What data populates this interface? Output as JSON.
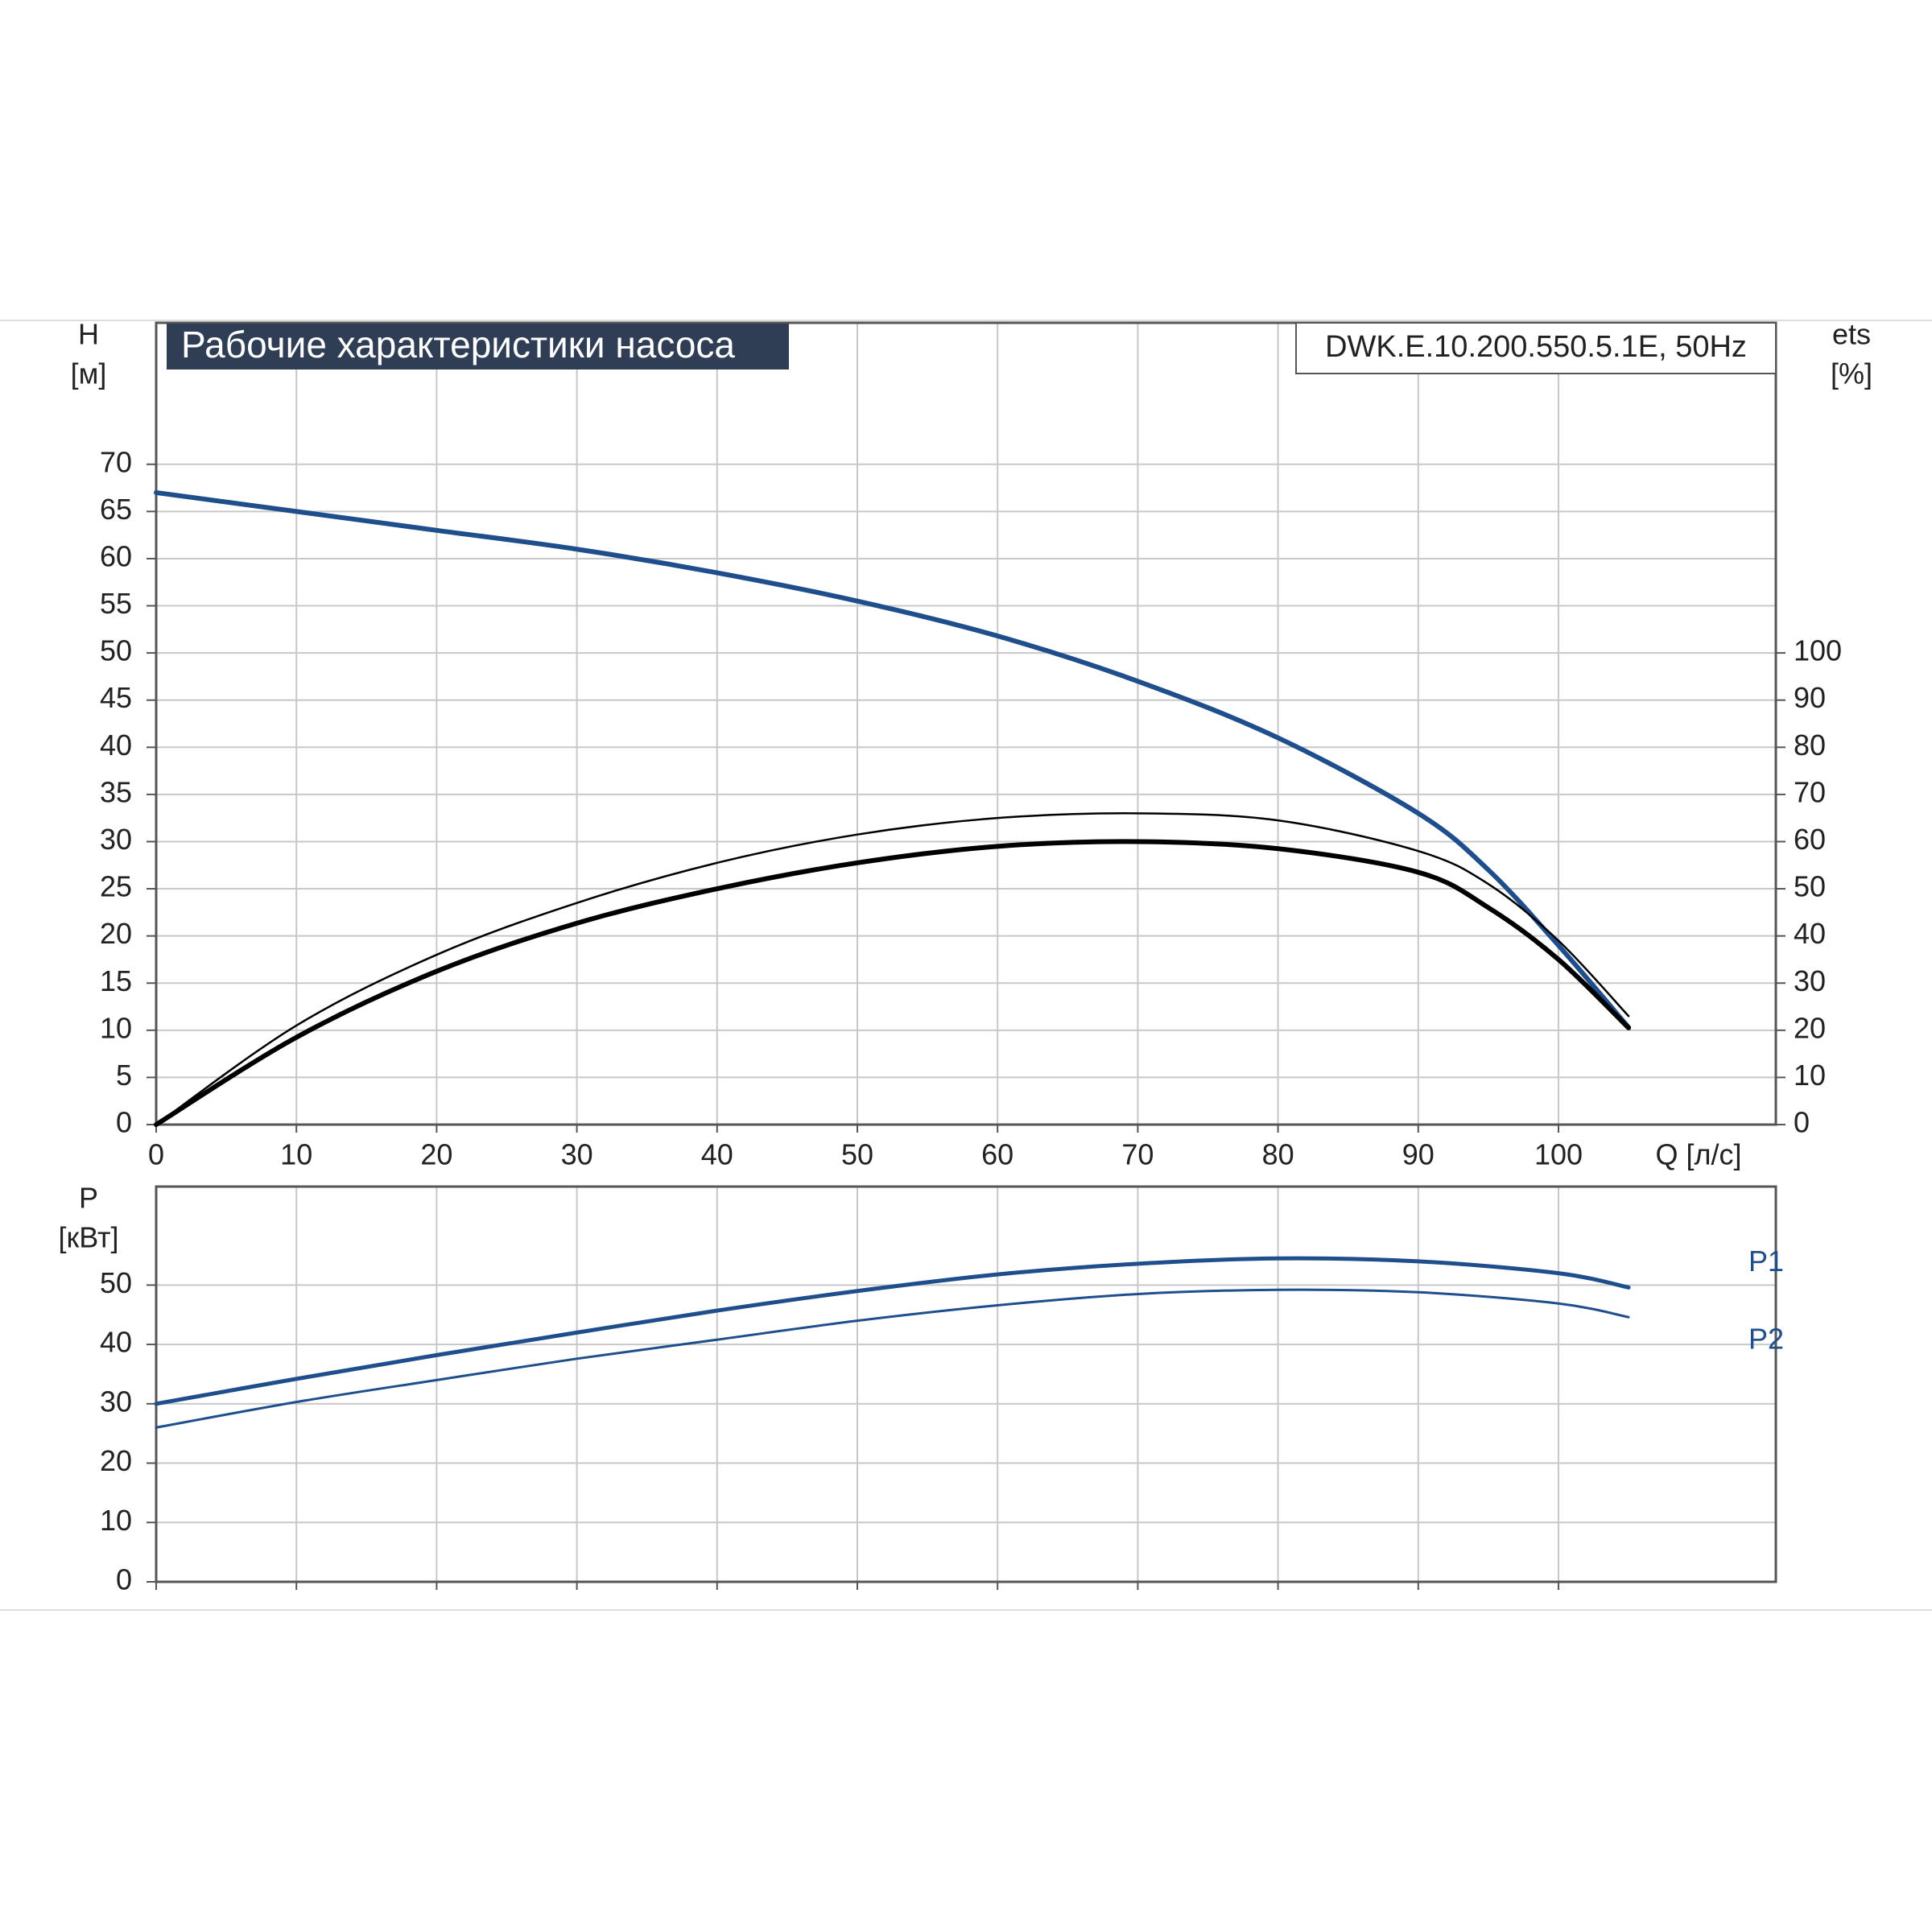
{
  "chart_data": [
    {
      "type": "line",
      "title": "Рабочие характеристики насоса",
      "model": "DWK.E.10.200.550.5.1E, 50Hz",
      "ylabel": "H",
      "yunit": "[м]",
      "y2label": "ets",
      "y2unit": "[%]",
      "xlabel": "Q [л/с]",
      "x": [
        0,
        10,
        20,
        30,
        40,
        50,
        60,
        70,
        80,
        90,
        95,
        100,
        105
      ],
      "xlim": [
        0,
        115.5
      ],
      "xticks": [
        0,
        10,
        20,
        30,
        40,
        50,
        60,
        70,
        80,
        90,
        100
      ],
      "ylim": [
        0,
        85
      ],
      "yticks": [
        0,
        5,
        10,
        15,
        20,
        25,
        30,
        35,
        40,
        45,
        50,
        55,
        60,
        65,
        70
      ],
      "y2lim": [
        0,
        170
      ],
      "y2ticks": [
        0,
        10,
        20,
        30,
        40,
        50,
        60,
        70,
        80,
        90,
        100
      ],
      "grid": true,
      "series": [
        {
          "color": "#1f4e8c",
          "width": 6,
          "values": [
            67,
            65,
            63,
            61,
            58.5,
            55.5,
            51.8,
            47,
            41,
            33,
            27,
            19,
            10.3
          ]
        },
        {
          "color": "#000000",
          "width": 2.5,
          "axis": "y2",
          "values": [
            0,
            21,
            36,
            47,
            55.5,
            61.5,
            65,
            66,
            64.5,
            58,
            51,
            39,
            23
          ]
        },
        {
          "color": "#000000",
          "width": 6,
          "axis": "y2",
          "values": [
            0,
            18.5,
            32.5,
            42.7,
            50,
            55.5,
            59,
            60,
            58.5,
            53.5,
            46,
            35,
            20.5
          ]
        }
      ]
    },
    {
      "type": "line",
      "ylabel": "P",
      "yunit": "[кВт]",
      "x": [
        0,
        10,
        20,
        30,
        40,
        50,
        60,
        70,
        80,
        90,
        100,
        105
      ],
      "xlim": [
        0,
        115.5
      ],
      "ylim": [
        0,
        66.6
      ],
      "yticks": [
        0,
        10,
        20,
        30,
        40,
        50
      ],
      "grid": true,
      "series": [
        {
          "name": "P1",
          "color": "#1f4e8c",
          "width": 5,
          "values": [
            30,
            34.2,
            38.2,
            42,
            45.7,
            49,
            51.8,
            53.6,
            54.5,
            54,
            52,
            49.6
          ]
        },
        {
          "name": "P2",
          "color": "#1f4e8c",
          "width": 3,
          "values": [
            26,
            30.3,
            34,
            37.6,
            40.8,
            44,
            46.6,
            48.5,
            49.2,
            48.8,
            46.9,
            44.6
          ]
        }
      ]
    }
  ]
}
